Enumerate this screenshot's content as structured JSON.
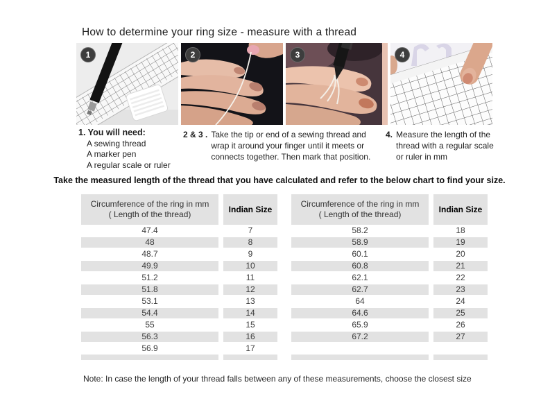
{
  "page": {
    "title": "How to determine your ring size - measure with a thread",
    "instruction": "Take the measured length of the thread that you have calculated and refer to the below chart to find your size.",
    "note": "Note: In case the length of your thread falls between any of these measurements, choose the closest size"
  },
  "photos": [
    {
      "badge": "1",
      "alt": "supplies: marker pen, grid ruler and sewing thread"
    },
    {
      "badge": "2",
      "alt": "thread wrapped around finger"
    },
    {
      "badge": "3",
      "alt": "marking the thread position with a pen"
    },
    {
      "badge": "4",
      "alt": "measuring the thread on a grid ruler"
    }
  ],
  "steps": {
    "step1": {
      "heading": "1. You will need:",
      "items": [
        "A sewing thread",
        "A marker pen",
        "A regular scale or ruler"
      ]
    },
    "step23": {
      "label": "2 & 3 .",
      "text": "Take the tip or end of a sewing thread and wrap it around your finger until it meets or connects together. Then mark that position."
    },
    "step4": {
      "label": "4.",
      "text": "Measure the length of the thread with a regular scale or ruler in mm"
    }
  },
  "table_header": {
    "col1_line1": "Circumference of the ring in mm",
    "col1_line2": "( Length of the thread)",
    "col2": "Indian Size"
  },
  "tables": [
    {
      "rows": [
        [
          "47.4",
          "7"
        ],
        [
          "48",
          "8"
        ],
        [
          "48.7",
          "9"
        ],
        [
          "49.9",
          "10"
        ],
        [
          "51.2",
          "11"
        ],
        [
          "51.8",
          "12"
        ],
        [
          "53.1",
          "13"
        ],
        [
          "54.4",
          "14"
        ],
        [
          "55",
          "15"
        ],
        [
          "56.3",
          "16"
        ],
        [
          "56.9",
          "17"
        ]
      ]
    },
    {
      "rows": [
        [
          "58.2",
          "18"
        ],
        [
          "58.9",
          "19"
        ],
        [
          "60.1",
          "20"
        ],
        [
          "60.8",
          "21"
        ],
        [
          "62.1",
          "22"
        ],
        [
          "62.7",
          "23"
        ],
        [
          "64",
          "24"
        ],
        [
          "64.6",
          "25"
        ],
        [
          "65.9",
          "26"
        ],
        [
          "67.2",
          "27"
        ]
      ]
    }
  ],
  "colors": {
    "row_alt": "#e2e2e2",
    "header_bg": "#e2e2e2",
    "badge_bg": "#3d3d3d"
  }
}
